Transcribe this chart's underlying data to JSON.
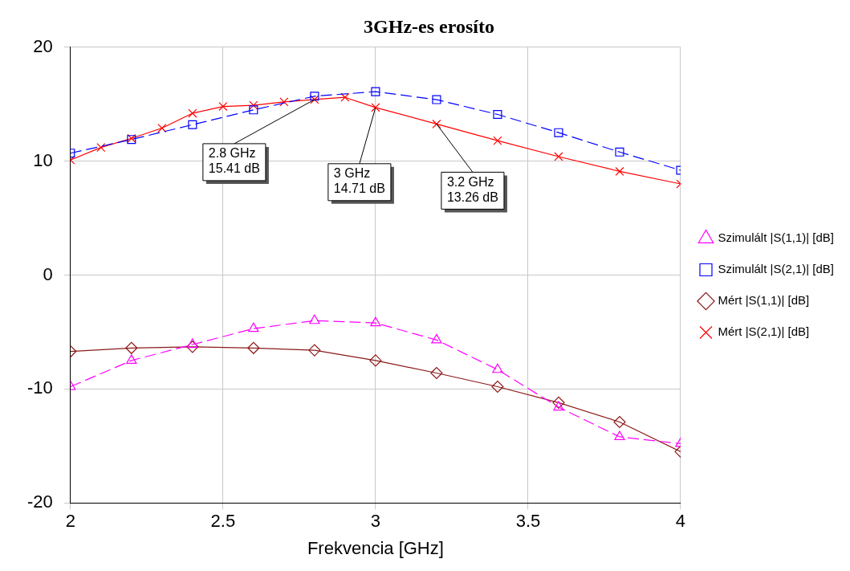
{
  "chart_data": {
    "type": "line",
    "title": "3GHz-es erosíto",
    "xlabel": "Frekvencia [GHz]",
    "xlim": [
      2,
      4
    ],
    "xticks": [
      2,
      2.5,
      3,
      3.5,
      4
    ],
    "ylim": [
      -20,
      20
    ],
    "yticks": [
      -20,
      -10,
      0,
      10,
      20
    ],
    "grid": true,
    "legend": "right",
    "series": [
      {
        "name": "Szimulált |S(1,1)| [dB]",
        "color": "#ff00ff",
        "marker": "triangle",
        "line_style": "dashed",
        "x": [
          2,
          2.2,
          2.4,
          2.6,
          2.8,
          3,
          3.2,
          3.4,
          3.6,
          3.8,
          4
        ],
        "values": [
          -9.8,
          -7.5,
          -6.1,
          -4.7,
          -4,
          -4.2,
          -5.7,
          -8.3,
          -11.6,
          -14.2,
          -14.8
        ]
      },
      {
        "name": "Szimulált |S(2,1)| [dB]",
        "color": "#0000ff",
        "marker": "square",
        "line_style": "dashed",
        "x": [
          2,
          2.2,
          2.4,
          2.6,
          2.8,
          3,
          3.2,
          3.4,
          3.6,
          3.8,
          4
        ],
        "values": [
          10.7,
          11.9,
          13.2,
          14.5,
          15.7,
          16.1,
          15.4,
          14.1,
          12.5,
          10.8,
          9.2
        ]
      },
      {
        "name": "Mért |S(1,1)| [dB]",
        "color": "#8b1a1a",
        "marker": "diamond",
        "line_style": "solid",
        "x": [
          2,
          2.2,
          2.4,
          2.6,
          2.8,
          3,
          3.2,
          3.4,
          3.6,
          3.8,
          4
        ],
        "values": [
          -6.7,
          -6.4,
          -6.3,
          -6.4,
          -6.6,
          -7.5,
          -8.6,
          -9.8,
          -11.2,
          -12.9,
          -15.5
        ]
      },
      {
        "name": "Mért |S(2,1)| [dB]",
        "color": "#ff0000",
        "marker": "cross",
        "line_style": "solid",
        "x": [
          2,
          2.1,
          2.2,
          2.3,
          2.4,
          2.5,
          2.6,
          2.7,
          2.8,
          2.9,
          3,
          3.2,
          3.4,
          3.6,
          3.8,
          4
        ],
        "values": [
          10.1,
          11.2,
          12,
          12.9,
          14.2,
          14.8,
          14.9,
          15.2,
          15.41,
          15.6,
          14.71,
          13.26,
          11.8,
          10.4,
          9.1,
          8
        ]
      }
    ],
    "annotations": [
      {
        "text": "2.8 GHz\n15.41 dB",
        "x": 2.8,
        "y": 15.41
      },
      {
        "text": "3 GHz\n14.71 dB",
        "x": 3,
        "y": 14.71
      },
      {
        "text": "3.2 GHz\n13.26 dB",
        "x": 3.2,
        "y": 13.26
      }
    ]
  }
}
